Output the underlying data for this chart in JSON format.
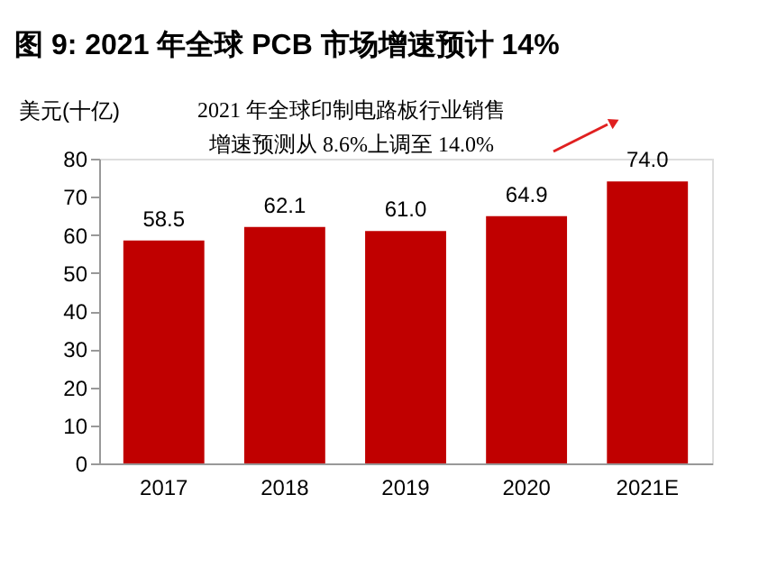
{
  "chart_data": {
    "type": "bar",
    "title": "图 9: 2021 年全球 PCB 市场增速预计 14%",
    "ylabel": "美元(十亿)",
    "categories": [
      "2017",
      "2018",
      "2019",
      "2020",
      "2021E"
    ],
    "values": [
      58.5,
      62.1,
      61.0,
      64.9,
      74.0
    ],
    "color": "#c00000",
    "ylim": [
      0,
      80
    ],
    "yticks": [
      0,
      10,
      20,
      30,
      40,
      50,
      60,
      70,
      80
    ],
    "grid": false,
    "value_labels": [
      "58.5",
      "62.1",
      "61.0",
      "64.9",
      "74.0"
    ],
    "annotations": [
      "2021 年全球印制电路板行业销售",
      "增速预测从 8.6%上调至 14.0%"
    ]
  }
}
